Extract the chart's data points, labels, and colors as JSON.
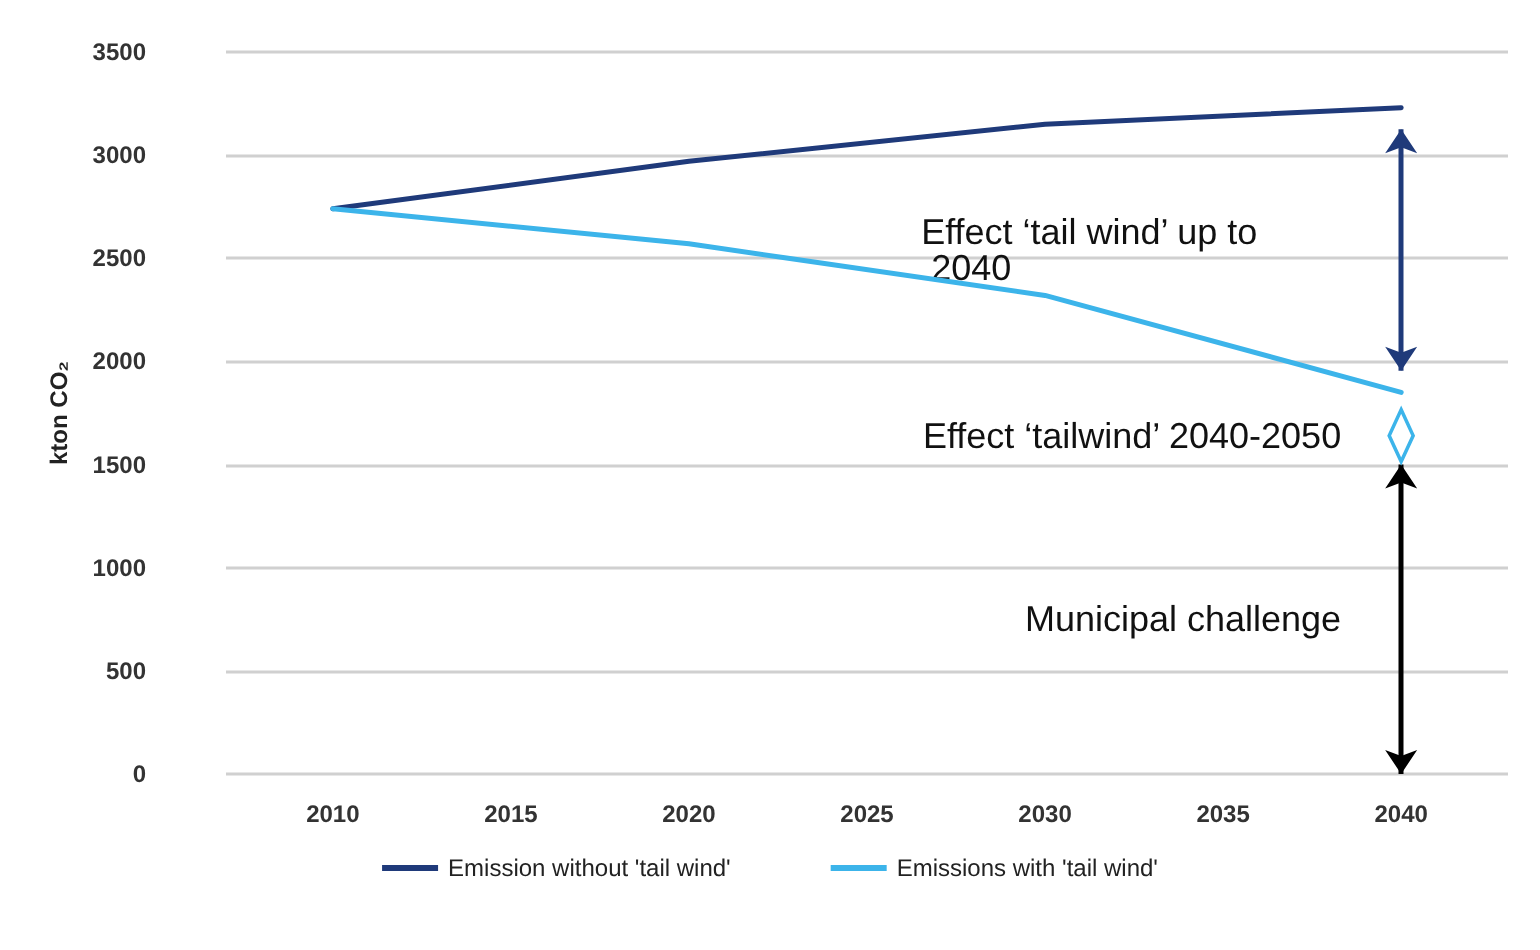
{
  "chart_data": {
    "type": "line",
    "ylabel": "kton CO₂",
    "x": [
      2010,
      2020,
      2030,
      2040
    ],
    "series": [
      {
        "name": "Emission without 'tail wind'",
        "color": "#1f3a7a",
        "values": [
          2740,
          2970,
          3150,
          3230
        ]
      },
      {
        "name": "Emissions with 'tail wind'",
        "color": "#3cb4ea",
        "values": [
          2740,
          2570,
          2320,
          1850
        ]
      }
    ],
    "xlim": [
      2007,
      2043
    ],
    "xticks": [
      2010,
      2015,
      2020,
      2025,
      2030,
      2035,
      2040
    ],
    "ylim": [
      0,
      3500
    ],
    "yticks": [
      0,
      500,
      1000,
      1500,
      2000,
      2500,
      3000,
      3500
    ],
    "grid": "y",
    "legend": "bottom",
    "annotations": [
      "Effect ‘tail wind’ up to 2040",
      "Effect ‘tailwind’ 2040-2050",
      "Municipal challenge"
    ]
  }
}
